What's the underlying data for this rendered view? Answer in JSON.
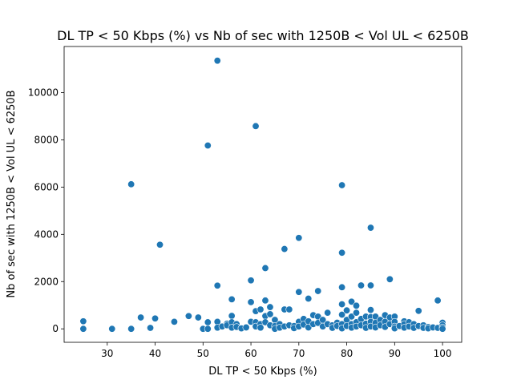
{
  "chart_data": {
    "type": "scatter",
    "title": "DL TP < 50 Kbps (%) vs Nb of sec with 1250B < Vol UL < 6250B",
    "xlabel": "DL TP < 50 Kbps (%)",
    "ylabel": "Nb of sec with 1250B < Vol UL < 6250B",
    "xlim": [
      21,
      104
    ],
    "ylim": [
      -570,
      11950
    ],
    "xticks": [
      30,
      40,
      50,
      60,
      70,
      80,
      90,
      100
    ],
    "xtick_labels": [
      "30",
      "40",
      "50",
      "60",
      "70",
      "80",
      "90",
      "100"
    ],
    "yticks": [
      0,
      2000,
      4000,
      6000,
      8000,
      10000
    ],
    "ytick_labels": [
      "0",
      "2000",
      "4000",
      "6000",
      "8000",
      "10000"
    ],
    "grid": false,
    "legend": "none",
    "color": "#1f77b4",
    "points": [
      [
        25,
        320
      ],
      [
        25,
        0
      ],
      [
        31,
        0
      ],
      [
        35,
        6120
      ],
      [
        35,
        0
      ],
      [
        37,
        480
      ],
      [
        39,
        40
      ],
      [
        40,
        440
      ],
      [
        41,
        3560
      ],
      [
        44,
        300
      ],
      [
        47,
        540
      ],
      [
        49,
        480
      ],
      [
        50,
        0
      ],
      [
        51,
        7760
      ],
      [
        51,
        280
      ],
      [
        51,
        0
      ],
      [
        53,
        11350
      ],
      [
        53,
        1830
      ],
      [
        53,
        300
      ],
      [
        53,
        50
      ],
      [
        54,
        100
      ],
      [
        55,
        220
      ],
      [
        55,
        150
      ],
      [
        56,
        1250
      ],
      [
        56,
        550
      ],
      [
        56,
        280
      ],
      [
        56,
        50
      ],
      [
        57,
        200
      ],
      [
        57,
        80
      ],
      [
        58,
        20
      ],
      [
        59,
        60
      ],
      [
        60,
        2050
      ],
      [
        60,
        1130
      ],
      [
        60,
        300
      ],
      [
        61,
        8580
      ],
      [
        61,
        750
      ],
      [
        61,
        280
      ],
      [
        61,
        100
      ],
      [
        62,
        820
      ],
      [
        62,
        200
      ],
      [
        62,
        50
      ],
      [
        63,
        2570
      ],
      [
        63,
        1200
      ],
      [
        63,
        540
      ],
      [
        63,
        280
      ],
      [
        64,
        920
      ],
      [
        64,
        620
      ],
      [
        64,
        150
      ],
      [
        65,
        380
      ],
      [
        65,
        120
      ],
      [
        65,
        0
      ],
      [
        66,
        200
      ],
      [
        66,
        50
      ],
      [
        67,
        3380
      ],
      [
        67,
        820
      ],
      [
        67,
        100
      ],
      [
        68,
        820
      ],
      [
        68,
        150
      ],
      [
        69,
        120
      ],
      [
        69,
        30
      ],
      [
        70,
        3850
      ],
      [
        70,
        1560
      ],
      [
        70,
        300
      ],
      [
        70,
        100
      ],
      [
        71,
        420
      ],
      [
        71,
        180
      ],
      [
        72,
        1280
      ],
      [
        72,
        320
      ],
      [
        72,
        60
      ],
      [
        73,
        580
      ],
      [
        73,
        200
      ],
      [
        74,
        1600
      ],
      [
        74,
        520
      ],
      [
        74,
        250
      ],
      [
        75,
        380
      ],
      [
        75,
        100
      ],
      [
        76,
        680
      ],
      [
        76,
        200
      ],
      [
        77,
        150
      ],
      [
        77,
        40
      ],
      [
        78,
        260
      ],
      [
        78,
        120
      ],
      [
        79,
        6080
      ],
      [
        79,
        3220
      ],
      [
        79,
        1760
      ],
      [
        79,
        1040
      ],
      [
        79,
        600
      ],
      [
        79,
        200
      ],
      [
        79,
        20
      ],
      [
        80,
        780
      ],
      [
        80,
        380
      ],
      [
        80,
        120
      ],
      [
        81,
        1150
      ],
      [
        81,
        520
      ],
      [
        81,
        200
      ],
      [
        81,
        50
      ],
      [
        82,
        980
      ],
      [
        82,
        680
      ],
      [
        82,
        280
      ],
      [
        82,
        100
      ],
      [
        83,
        1840
      ],
      [
        83,
        420
      ],
      [
        83,
        150
      ],
      [
        84,
        520
      ],
      [
        84,
        220
      ],
      [
        84,
        40
      ],
      [
        85,
        4280
      ],
      [
        85,
        1840
      ],
      [
        85,
        800
      ],
      [
        85,
        500
      ],
      [
        85,
        300
      ],
      [
        85,
        100
      ],
      [
        86,
        520
      ],
      [
        86,
        250
      ],
      [
        86,
        60
      ],
      [
        87,
        380
      ],
      [
        87,
        150
      ],
      [
        88,
        580
      ],
      [
        88,
        300
      ],
      [
        88,
        80
      ],
      [
        89,
        2100
      ],
      [
        89,
        480
      ],
      [
        89,
        200
      ],
      [
        90,
        520
      ],
      [
        90,
        300
      ],
      [
        90,
        100
      ],
      [
        90,
        20
      ],
      [
        91,
        120
      ],
      [
        92,
        320
      ],
      [
        92,
        200
      ],
      [
        92,
        50
      ],
      [
        93,
        280
      ],
      [
        93,
        100
      ],
      [
        94,
        200
      ],
      [
        94,
        40
      ],
      [
        95,
        760
      ],
      [
        95,
        120
      ],
      [
        96,
        150
      ],
      [
        96,
        40
      ],
      [
        97,
        80
      ],
      [
        97,
        20
      ],
      [
        98,
        60
      ],
      [
        99,
        1200
      ],
      [
        99,
        40
      ],
      [
        100,
        260
      ],
      [
        100,
        150
      ],
      [
        100,
        60
      ],
      [
        100,
        0
      ]
    ]
  }
}
